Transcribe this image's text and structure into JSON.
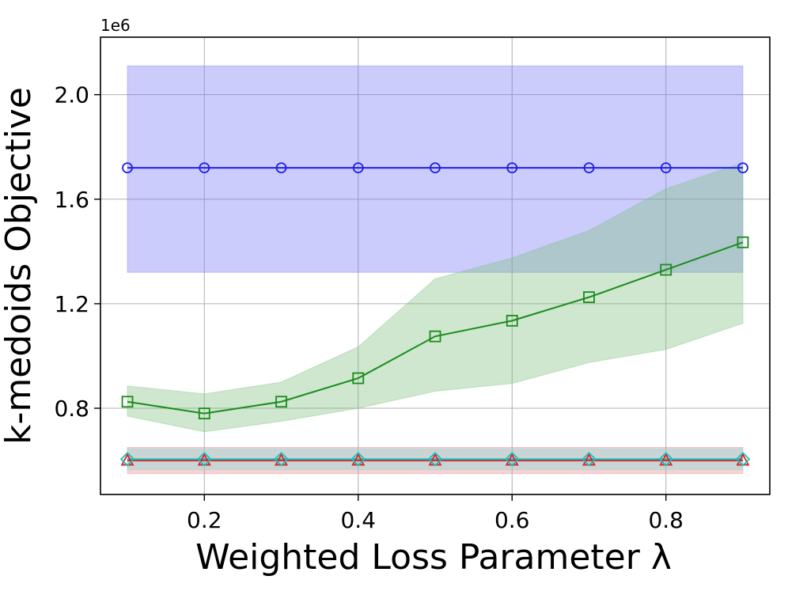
{
  "chart_data": {
    "type": "line",
    "title": "",
    "xlabel": "Weighted Loss Parameter λ",
    "ylabel": "k-medoids Objective",
    "y_scale_label": "1e6",
    "xlim": [
      0.065,
      0.935
    ],
    "ylim": [
      0.47,
      2.22
    ],
    "x_ticks": [
      0.2,
      0.4,
      0.6,
      0.8
    ],
    "x_tick_labels": [
      "0.2",
      "0.4",
      "0.6",
      "0.8"
    ],
    "y_ticks": [
      0.8,
      1.2,
      1.6,
      2.0
    ],
    "y_tick_labels": [
      "0.8",
      "1.2",
      "1.6",
      "2.0"
    ],
    "grid": true,
    "x": [
      0.1,
      0.2,
      0.3,
      0.4,
      0.5,
      0.6,
      0.7,
      0.8,
      0.9
    ],
    "series": [
      {
        "color": "#1f1fe6",
        "band_color": "#7777f6",
        "marker": "circle",
        "values": [
          1.72,
          1.72,
          1.72,
          1.72,
          1.72,
          1.72,
          1.72,
          1.72,
          1.72
        ],
        "lower": [
          1.32,
          1.32,
          1.32,
          1.32,
          1.32,
          1.32,
          1.32,
          1.32,
          1.32
        ],
        "upper": [
          2.11,
          2.11,
          2.11,
          2.11,
          2.11,
          2.11,
          2.11,
          2.11,
          2.11
        ]
      },
      {
        "color": "#1a8c1a",
        "band_color": "#7fc07f",
        "marker": "square",
        "values": [
          0.825,
          0.78,
          0.825,
          0.915,
          1.075,
          1.135,
          1.225,
          1.33,
          1.435
        ],
        "lower": [
          0.77,
          0.71,
          0.75,
          0.8,
          0.865,
          0.895,
          0.975,
          1.025,
          1.125
        ],
        "upper": [
          0.885,
          0.855,
          0.9,
          1.035,
          1.295,
          1.375,
          1.48,
          1.64,
          1.74
        ]
      },
      {
        "color": "#e02020",
        "band_color": "#e88888",
        "marker": "triangle",
        "values": [
          0.6,
          0.6,
          0.6,
          0.6,
          0.6,
          0.6,
          0.6,
          0.6,
          0.6
        ],
        "lower": [
          0.55,
          0.55,
          0.55,
          0.55,
          0.55,
          0.55,
          0.55,
          0.55,
          0.55
        ],
        "upper": [
          0.65,
          0.65,
          0.65,
          0.65,
          0.65,
          0.65,
          0.65,
          0.65,
          0.65
        ]
      },
      {
        "color": "#17bfbf",
        "band_color": "#80dada",
        "marker": "diamond",
        "values": [
          0.605,
          0.605,
          0.605,
          0.605,
          0.605,
          0.605,
          0.605,
          0.605,
          0.605
        ],
        "lower": [
          0.565,
          0.565,
          0.565,
          0.565,
          0.565,
          0.565,
          0.565,
          0.565,
          0.565
        ],
        "upper": [
          0.645,
          0.645,
          0.645,
          0.645,
          0.645,
          0.645,
          0.645,
          0.645,
          0.645
        ]
      }
    ]
  }
}
